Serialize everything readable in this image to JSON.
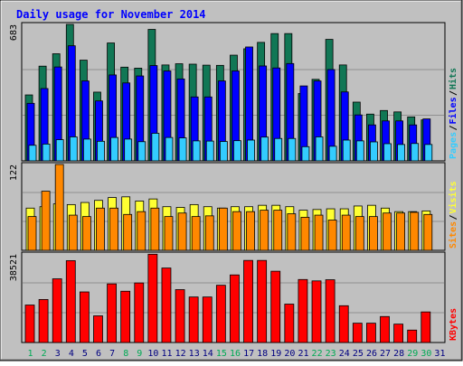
{
  "title": "Daily usage for November 2014",
  "colors": {
    "frame_bg": "#c0c0c0",
    "title_text": "#0000ff",
    "hits": "#117755",
    "files": "#0000ff",
    "pages": "#33ccff",
    "visits": "#ffff33",
    "sites": "#ff8800",
    "kbytes": "#ff0000",
    "weekend_label": "#00aa55",
    "weekday_label": "#000080"
  },
  "chart_data": [
    {
      "type": "bar",
      "title": "Daily usage for November 2014",
      "categories": [
        "1",
        "2",
        "3",
        "4",
        "5",
        "6",
        "7",
        "8",
        "9",
        "10",
        "11",
        "12",
        "13",
        "14",
        "15",
        "16",
        "17",
        "18",
        "19",
        "20",
        "21",
        "22",
        "23",
        "24",
        "25",
        "26",
        "27",
        "28",
        "29",
        "30",
        "31"
      ],
      "weekend_days": [
        "1",
        "2",
        "8",
        "9",
        "15",
        "16",
        "22",
        "23",
        "29",
        "30"
      ],
      "ylim": [
        0,
        683
      ],
      "ytick_label": "683",
      "legend": [
        "Pages",
        "Files",
        "Hits"
      ],
      "series": [
        {
          "name": "Hits",
          "values": [
            330,
            474,
            536,
            683,
            504,
            344,
            590,
            469,
            464,
            658,
            480,
            486,
            484,
            479,
            478,
            529,
            561,
            593,
            637,
            637,
            337,
            408,
            608,
            480,
            294,
            234,
            252,
            245,
            220,
            205,
            0
          ]
        },
        {
          "name": "Files",
          "values": [
            288,
            362,
            470,
            576,
            400,
            300,
            430,
            390,
            425,
            477,
            450,
            410,
            320,
            320,
            400,
            450,
            570,
            475,
            465,
            487,
            375,
            400,
            457,
            345,
            230,
            180,
            200,
            200,
            180,
            210,
            0
          ]
        },
        {
          "name": "Pages",
          "values": [
            78,
            84,
            106,
            120,
            109,
            98,
            117,
            109,
            96,
            138,
            117,
            115,
            100,
            99,
            97,
            101,
            104,
            119,
            112,
            112,
            71,
            120,
            73,
            104,
            100,
            95,
            86,
            82,
            87,
            82,
            0
          ]
        }
      ]
    },
    {
      "type": "bar",
      "categories": [
        "1",
        "2",
        "3",
        "4",
        "5",
        "6",
        "7",
        "8",
        "9",
        "10",
        "11",
        "12",
        "13",
        "14",
        "15",
        "16",
        "17",
        "18",
        "19",
        "20",
        "21",
        "22",
        "23",
        "24",
        "25",
        "26",
        "27",
        "28",
        "29",
        "30",
        "31"
      ],
      "ylim": [
        0,
        122
      ],
      "ytick_label": "122",
      "legend": [
        "Sites",
        "Visits"
      ],
      "series": [
        {
          "name": "Visits",
          "values": [
            60,
            62,
            66,
            65,
            68,
            71,
            75,
            76,
            70,
            73,
            62,
            61,
            65,
            62,
            60,
            62,
            62,
            64,
            64,
            62,
            57,
            58,
            59,
            59,
            63,
            64,
            60,
            55,
            55,
            56,
            0
          ]
        },
        {
          "name": "Sites",
          "values": [
            48,
            84,
            122,
            50,
            48,
            60,
            60,
            51,
            55,
            60,
            48,
            53,
            48,
            49,
            60,
            55,
            55,
            57,
            57,
            52,
            47,
            50,
            43,
            50,
            48,
            48,
            53,
            53,
            54,
            51,
            0
          ]
        }
      ]
    },
    {
      "type": "bar",
      "categories": [
        "1",
        "2",
        "3",
        "4",
        "5",
        "6",
        "7",
        "8",
        "9",
        "10",
        "11",
        "12",
        "13",
        "14",
        "15",
        "16",
        "17",
        "18",
        "19",
        "20",
        "21",
        "22",
        "23",
        "24",
        "25",
        "26",
        "27",
        "28",
        "29",
        "30",
        "31"
      ],
      "ylim": [
        0,
        38521
      ],
      "ytick_label": "38521",
      "legend": [
        "KBytes"
      ],
      "series": [
        {
          "name": "KBytes",
          "values": [
            16300,
            18700,
            27700,
            35600,
            22000,
            11600,
            25500,
            22300,
            25900,
            38400,
            32400,
            23000,
            19800,
            19800,
            24900,
            29400,
            35700,
            35700,
            31000,
            16700,
            27400,
            26800,
            27300,
            16000,
            8400,
            8400,
            11300,
            8000,
            5400,
            13300,
            0
          ]
        }
      ]
    }
  ]
}
